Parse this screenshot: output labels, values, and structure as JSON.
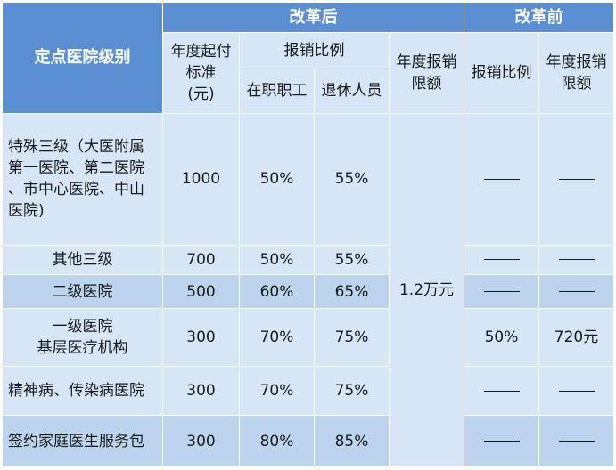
{
  "headers": {
    "level_title": "定点医院级别",
    "reform_after": "改革后",
    "reform_before": "改革前",
    "deductible_line1": "年度起付",
    "deductible_line2": "标准",
    "deductible_line3": "(元)",
    "reimburse_ratio": "报销比例",
    "annual_limit_line1": "年度报销",
    "annual_limit_line2": "限额",
    "employed": "在职职工",
    "retired": "退休人员",
    "before_ratio": "报销比例",
    "before_limit_line1": "年度报销",
    "before_limit_line2": "限额"
  },
  "annual_limit_after": "1.2万元",
  "rows": [
    {
      "level_lines": [
        "特殊三级（大医附属",
        "第一医院、第二医院",
        "、市中心医院、中山",
        "医院)"
      ],
      "deductible": "1000",
      "employed": "50%",
      "retired": "55%",
      "before_ratio": "dash",
      "before_limit": "dash"
    },
    {
      "level_lines": [
        "其他三级"
      ],
      "deductible": "700",
      "employed": "50%",
      "retired": "55%",
      "before_ratio": "dash",
      "before_limit": "dash"
    },
    {
      "level_lines": [
        "二级医院"
      ],
      "deductible": "500",
      "employed": "60%",
      "retired": "65%",
      "before_ratio": "dash",
      "before_limit": "dash"
    },
    {
      "level_lines": [
        "一级医院",
        "基层医疗机构"
      ],
      "deductible": "300",
      "employed": "70%",
      "retired": "75%",
      "before_ratio": "50%",
      "before_limit": "720元"
    },
    {
      "level_lines": [
        "精神病、传染病医院"
      ],
      "deductible": "300",
      "employed": "70%",
      "retired": "75%",
      "before_ratio": "dash",
      "before_limit": "dash"
    },
    {
      "level_lines": [
        "签约家庭医生服务包"
      ],
      "deductible": "300",
      "employed": "80%",
      "retired": "85%",
      "before_ratio": "dash",
      "before_limit": "dash"
    }
  ]
}
